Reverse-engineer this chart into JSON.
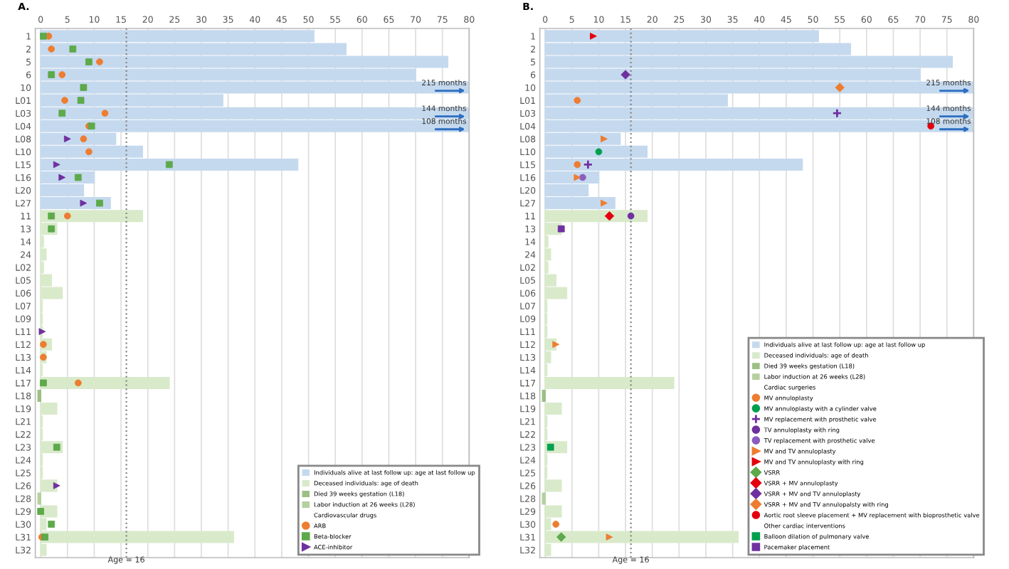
{
  "chart_data": [
    {
      "type": "bar",
      "orientation": "horizontal",
      "title": "A.",
      "categories": [
        "1",
        "2",
        "5",
        "6",
        "10",
        "L01",
        "L03",
        "L04",
        "L08",
        "L10",
        "L15",
        "L16",
        "L20",
        "L27",
        "11",
        "13",
        "14",
        "24",
        "L02",
        "L05",
        "L06",
        "L07",
        "L09",
        "L11",
        "L12",
        "L13",
        "L14",
        "L17",
        "L18",
        "L19",
        "L21",
        "L22",
        "L23",
        "L24",
        "L25",
        "L26",
        "L28",
        "L29",
        "L30",
        "L31",
        "L32"
      ],
      "xlim": [
        -1,
        80
      ],
      "xticks": [
        0,
        5,
        10,
        15,
        20,
        25,
        30,
        35,
        40,
        45,
        50,
        55,
        60,
        65,
        70,
        75,
        80
      ],
      "grid": "x",
      "legend": "bottom right",
      "ref_lines": [
        {
          "axis": "x",
          "value": 16,
          "label": "Age = 16",
          "line_style": "dotted",
          "color": "#888888"
        }
      ],
      "annotations": [
        {
          "text": "215 months",
          "y": "10"
        },
        {
          "text": "144 months",
          "y": "L03"
        },
        {
          "text": "108 months",
          "y": "L04"
        }
      ],
      "series": [
        {
          "name": "Individuals alive at last follow up: age at last follow up",
          "color": "#c5d9ee",
          "values": [
            51,
            57,
            76,
            70,
            80,
            34,
            80,
            80,
            14,
            19,
            48,
            10,
            8,
            13,
            null,
            null,
            null,
            null,
            null,
            null,
            null,
            null,
            null,
            null,
            null,
            null,
            null,
            null,
            null,
            null,
            null,
            null,
            null,
            null,
            null,
            null,
            null,
            null,
            null,
            null,
            null
          ]
        },
        {
          "name": "Deceased individuals: age of death",
          "color": "#d9eacb",
          "values": [
            null,
            null,
            null,
            null,
            null,
            null,
            null,
            null,
            null,
            null,
            null,
            null,
            null,
            null,
            19,
            3,
            0.5,
            1,
            0.5,
            2,
            4,
            0.3,
            0.3,
            0.3,
            2,
            1,
            0.3,
            24,
            null,
            3,
            0.3,
            0.3,
            4,
            0.3,
            0.3,
            3,
            null,
            3,
            1,
            36,
            1
          ]
        },
        {
          "name": "Died 39 weeks gestation (L18)",
          "color": "#9dbf83",
          "values": [
            null,
            null,
            null,
            null,
            null,
            null,
            null,
            null,
            null,
            null,
            null,
            null,
            null,
            null,
            null,
            null,
            null,
            null,
            null,
            null,
            null,
            null,
            null,
            null,
            null,
            null,
            null,
            null,
            -0.5,
            null,
            null,
            null,
            null,
            null,
            null,
            null,
            null,
            null,
            null,
            null,
            null
          ]
        },
        {
          "name": "Labor induction at 26 weeks (L28)",
          "color": "#b5d09e",
          "values": [
            null,
            null,
            null,
            null,
            null,
            null,
            null,
            null,
            null,
            null,
            null,
            null,
            null,
            null,
            null,
            null,
            null,
            null,
            null,
            null,
            null,
            null,
            null,
            null,
            null,
            null,
            null,
            null,
            null,
            null,
            null,
            null,
            null,
            null,
            null,
            null,
            -0.5,
            null,
            null,
            null,
            null
          ]
        },
        {
          "type": "scatter",
          "name": "Cardiovascular drugs",
          "marker": "none",
          "values": [
            null,
            null,
            null,
            null,
            null,
            null,
            null,
            null,
            null,
            null,
            null,
            null,
            null,
            null,
            null,
            null,
            null,
            null,
            null,
            null,
            null,
            null,
            null,
            null,
            null,
            null,
            null,
            null,
            null,
            null,
            null,
            null,
            null,
            null,
            null,
            null,
            null,
            null,
            null,
            null,
            null
          ]
        },
        {
          "type": "scatter",
          "name": "ARB",
          "marker": "circle",
          "color": "#ed7d31",
          "x": [
            "1",
            "2",
            "5",
            "6",
            "L01",
            "L03",
            "L04",
            "L08",
            "L10",
            "11",
            "L12",
            "L13",
            "L17",
            "L31"
          ],
          "values": [
            1.5,
            2,
            11,
            4,
            4.5,
            12,
            9,
            8,
            9,
            5,
            0.5,
            0.5,
            7,
            0.2
          ]
        },
        {
          "type": "scatter",
          "name": "Beta-blocker",
          "marker": "square",
          "color": "#5ea94a",
          "x": [
            "1",
            "2",
            "5",
            "6",
            "10",
            "L01",
            "L03",
            "L04",
            "L15",
            "L16",
            "L27",
            "11",
            "13",
            "L17",
            "L23",
            "L29",
            "L30",
            "L31"
          ],
          "values": [
            0.5,
            6,
            9,
            2,
            8,
            7.5,
            4,
            9.5,
            24,
            7,
            11,
            2,
            2,
            0.5,
            3,
            0,
            2,
            0.8
          ]
        },
        {
          "type": "scatter",
          "name": "ACE-inhibitor",
          "marker": "triangle",
          "color": "#7030a0",
          "x": [
            "L08",
            "L15",
            "L16",
            "L27",
            "L11",
            "L26"
          ],
          "values": [
            5,
            3,
            4,
            8,
            0.3,
            3
          ]
        }
      ]
    },
    {
      "type": "bar",
      "orientation": "horizontal",
      "title": "B.",
      "categories": [
        "1",
        "2",
        "5",
        "6",
        "10",
        "L01",
        "L03",
        "L04",
        "L08",
        "L10",
        "L15",
        "L16",
        "L20",
        "L27",
        "11",
        "13",
        "14",
        "24",
        "L02",
        "L05",
        "L06",
        "L07",
        "L09",
        "L11",
        "L12",
        "L13",
        "L14",
        "L17",
        "L18",
        "L19",
        "L21",
        "L22",
        "L23",
        "L24",
        "L25",
        "L26",
        "L28",
        "L29",
        "L30",
        "L31",
        "L32"
      ],
      "xlim": [
        -1,
        80
      ],
      "xticks": [
        0,
        5,
        10,
        15,
        20,
        25,
        30,
        35,
        40,
        45,
        50,
        55,
        60,
        65,
        70,
        75,
        80
      ],
      "grid": "x",
      "legend": "bottom right",
      "ref_lines": [
        {
          "axis": "x",
          "value": 16,
          "label": "Age = 16",
          "line_style": "dotted",
          "color": "#888888"
        }
      ],
      "annotations": [
        {
          "text": "215 months",
          "y": "10"
        },
        {
          "text": "144 months",
          "y": "L03"
        },
        {
          "text": "108 months",
          "y": "L04"
        }
      ],
      "series": [
        {
          "name": "Individuals alive at last follow up: age at last follow up",
          "color": "#c5d9ee",
          "values": [
            51,
            57,
            76,
            70,
            80,
            34,
            80,
            80,
            14,
            19,
            48,
            10,
            8,
            13,
            null,
            null,
            null,
            null,
            null,
            null,
            null,
            null,
            null,
            null,
            null,
            null,
            null,
            null,
            null,
            null,
            null,
            null,
            null,
            null,
            null,
            null,
            null,
            null,
            null,
            null,
            null
          ]
        },
        {
          "name": "Deceased individuals: age of death",
          "color": "#d9eacb",
          "values": [
            null,
            null,
            null,
            null,
            null,
            null,
            null,
            null,
            null,
            null,
            null,
            null,
            null,
            null,
            19,
            3,
            0.5,
            1,
            0.5,
            2,
            4,
            0.3,
            0.3,
            0.3,
            2,
            1,
            0.3,
            24,
            null,
            3,
            0.3,
            0.3,
            4,
            0.3,
            0.3,
            3,
            null,
            3,
            1,
            36,
            1
          ]
        },
        {
          "name": "Died 39 weeks gestation (L18)",
          "color": "#9dbf83",
          "values": [
            null,
            null,
            null,
            null,
            null,
            null,
            null,
            null,
            null,
            null,
            null,
            null,
            null,
            null,
            null,
            null,
            null,
            null,
            null,
            null,
            null,
            null,
            null,
            null,
            null,
            null,
            null,
            null,
            -0.5,
            null,
            null,
            null,
            null,
            null,
            null,
            null,
            null,
            null,
            null,
            null,
            null
          ]
        },
        {
          "name": "Labor induction at 26 weeks (L28)",
          "color": "#b5d09e",
          "values": [
            null,
            null,
            null,
            null,
            null,
            null,
            null,
            null,
            null,
            null,
            null,
            null,
            null,
            null,
            null,
            null,
            null,
            null,
            null,
            null,
            null,
            null,
            null,
            null,
            null,
            null,
            null,
            null,
            null,
            null,
            null,
            null,
            null,
            null,
            null,
            null,
            -0.5,
            null,
            null,
            null,
            null
          ]
        },
        {
          "type": "scatter",
          "name": "Cardiac surgeries",
          "marker": "none",
          "values": [
            null,
            null,
            null,
            null,
            null,
            null,
            null,
            null,
            null,
            null,
            null,
            null,
            null,
            null,
            null,
            null,
            null,
            null,
            null,
            null,
            null,
            null,
            null,
            null,
            null,
            null,
            null,
            null,
            null,
            null,
            null,
            null,
            null,
            null,
            null,
            null,
            null,
            null,
            null,
            null,
            null
          ]
        },
        {
          "type": "scatter",
          "name": "MV annuloplasty",
          "marker": "circle",
          "color": "#ed7d31",
          "x": [
            "L01",
            "L15",
            "L30"
          ],
          "values": [
            6,
            6,
            2
          ]
        },
        {
          "type": "scatter",
          "name": "MV annuloplasty with a cylinder valve",
          "marker": "circle",
          "color": "#00a04f",
          "x": [
            "L10"
          ],
          "values": [
            10
          ]
        },
        {
          "type": "scatter",
          "name": "MV replacement with prosthetic valve",
          "marker": "cross",
          "color": "#7030a0",
          "x": [
            "L15",
            "L03"
          ],
          "values": [
            8,
            54.5
          ]
        },
        {
          "type": "scatter",
          "name": "TV annuloplasty with ring",
          "marker": "circle",
          "color": "#7030a0",
          "x": [
            "11"
          ],
          "values": [
            16
          ]
        },
        {
          "type": "scatter",
          "name": "TV replacement with prosthetic valve",
          "marker": "circle",
          "color": "#8a5cc0",
          "x": [
            "L16"
          ],
          "values": [
            7
          ]
        },
        {
          "type": "scatter",
          "name": "MV and TV annuloplasty",
          "marker": "triangle",
          "color": "#ed7d31",
          "x": [
            "L08",
            "L16",
            "L27",
            "L12",
            "L31"
          ],
          "values": [
            11,
            6,
            11,
            2,
            12
          ]
        },
        {
          "type": "scatter",
          "name": "MV and TV annuloplasty with ring",
          "marker": "triangle",
          "color": "#e3000f",
          "x": [
            "1"
          ],
          "values": [
            9
          ]
        },
        {
          "type": "scatter",
          "name": "VSRR",
          "marker": "diamond",
          "color": "#5ea94a",
          "x": [
            "L31"
          ],
          "values": [
            3
          ]
        },
        {
          "type": "scatter",
          "name": "VSRR + MV annuloplasty",
          "marker": "diamond",
          "color": "#e3000f",
          "x": [
            "11"
          ],
          "values": [
            12
          ]
        },
        {
          "type": "scatter",
          "name": "VSRR + MV and TV annuloplasty",
          "marker": "diamond",
          "color": "#7030a0",
          "x": [
            "6"
          ],
          "values": [
            15
          ]
        },
        {
          "type": "scatter",
          "name": "VSRR + MV and TV annulopalsty with ring",
          "marker": "diamond",
          "color": "#ed7d31",
          "x": [
            "10"
          ],
          "values": [
            55
          ]
        },
        {
          "type": "scatter",
          "name": "Aortic root sleeve placement + MV replacement with bioprosthetic valve",
          "marker": "circle",
          "color": "#e3000f",
          "x": [
            "L04"
          ],
          "values": [
            72
          ]
        },
        {
          "type": "scatter",
          "name": "Other cardiac interventions",
          "marker": "none",
          "values": [
            null,
            null,
            null,
            null,
            null,
            null,
            null,
            null,
            null,
            null,
            null,
            null,
            null,
            null,
            null,
            null,
            null,
            null,
            null,
            null,
            null,
            null,
            null,
            null,
            null,
            null,
            null,
            null,
            null,
            null,
            null,
            null,
            null,
            null,
            null,
            null,
            null,
            null,
            null,
            null,
            null
          ]
        },
        {
          "type": "scatter",
          "name": "Balloon dilation of pulmonary valve",
          "marker": "square",
          "color": "#00a04f",
          "x": [
            "L23"
          ],
          "values": [
            1
          ]
        },
        {
          "type": "scatter",
          "name": "Pacemaker placement",
          "marker": "square",
          "color": "#7030a0",
          "x": [
            "13"
          ],
          "values": [
            3
          ]
        }
      ]
    }
  ]
}
